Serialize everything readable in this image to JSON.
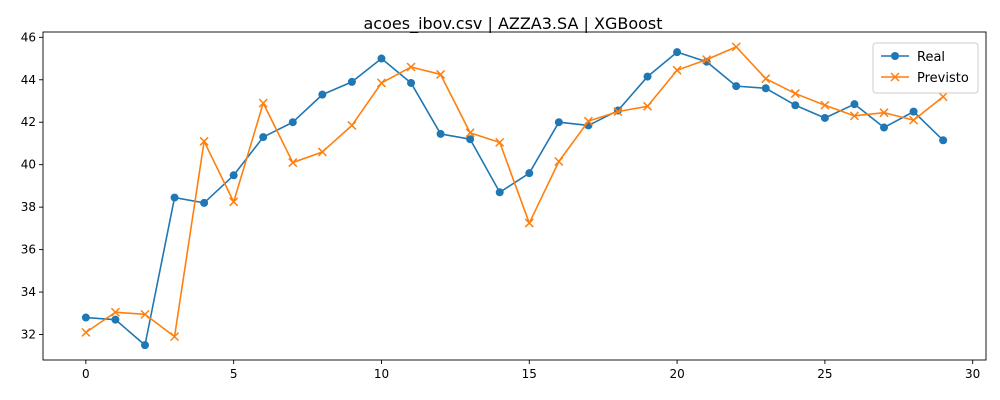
{
  "chart_data": {
    "type": "line",
    "title": "acoes_ibov.csv | AZZA3.SA | XGBoost",
    "xlabel": "",
    "ylabel": "",
    "xlim": [
      -1.45,
      30.45
    ],
    "ylim": [
      30.8,
      46.25
    ],
    "x_ticks": [
      0,
      5,
      10,
      15,
      20,
      25,
      30
    ],
    "y_ticks": [
      32,
      34,
      36,
      38,
      40,
      42,
      44,
      46
    ],
    "grid": false,
    "legend_position": "top-right",
    "x": [
      0,
      1,
      2,
      3,
      4,
      5,
      6,
      7,
      8,
      9,
      10,
      11,
      12,
      13,
      14,
      15,
      16,
      17,
      18,
      19,
      20,
      21,
      22,
      23,
      24,
      25,
      26,
      27,
      28,
      29
    ],
    "series": [
      {
        "name": "Real",
        "color": "#1f77b4",
        "marker": "circle",
        "values": [
          32.8,
          32.7,
          31.5,
          38.45,
          38.2,
          39.5,
          41.3,
          42.0,
          43.3,
          43.9,
          45.0,
          43.85,
          41.45,
          41.2,
          38.7,
          39.6,
          42.0,
          41.85,
          42.55,
          44.15,
          45.3,
          44.85,
          43.7,
          43.6,
          42.8,
          42.2,
          42.85,
          41.75,
          42.5,
          41.15
        ]
      },
      {
        "name": "Previsto",
        "color": "#ff7f0e",
        "marker": "x",
        "values": [
          32.1,
          33.05,
          32.95,
          31.9,
          41.1,
          38.25,
          42.9,
          40.1,
          40.6,
          41.85,
          43.85,
          44.6,
          44.25,
          41.5,
          41.05,
          37.25,
          40.15,
          42.05,
          42.5,
          42.75,
          44.45,
          44.95,
          45.55,
          44.05,
          43.35,
          42.8,
          42.3,
          42.45,
          42.1,
          43.2
        ]
      }
    ]
  }
}
